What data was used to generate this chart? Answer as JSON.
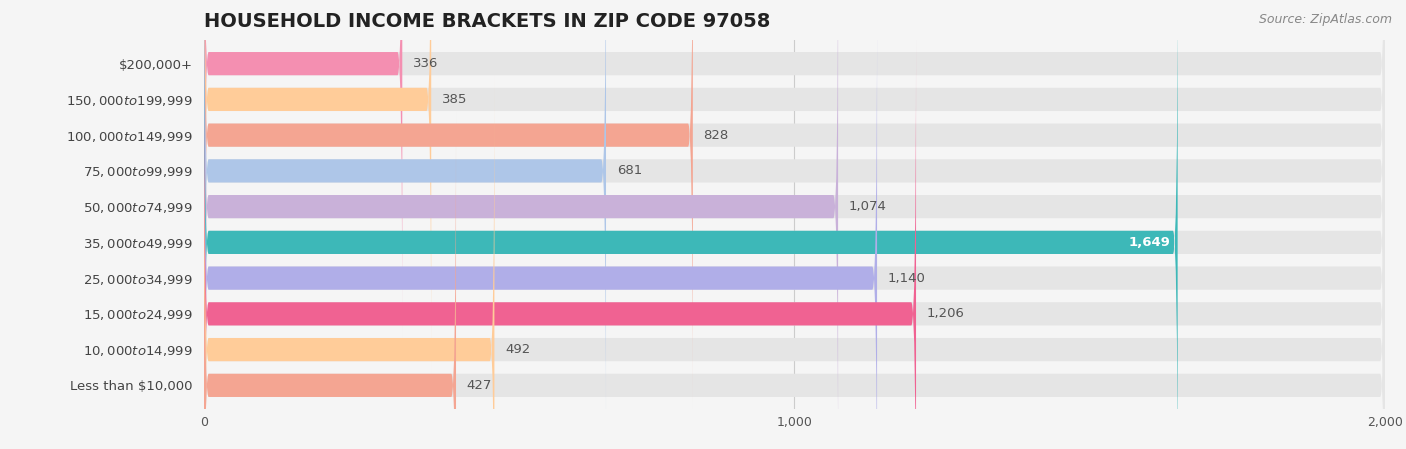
{
  "title": "HOUSEHOLD INCOME BRACKETS IN ZIP CODE 97058",
  "source": "Source: ZipAtlas.com",
  "categories": [
    "Less than $10,000",
    "$10,000 to $14,999",
    "$15,000 to $24,999",
    "$25,000 to $34,999",
    "$35,000 to $49,999",
    "$50,000 to $74,999",
    "$75,000 to $99,999",
    "$100,000 to $149,999",
    "$150,000 to $199,999",
    "$200,000+"
  ],
  "values": [
    336,
    385,
    828,
    681,
    1074,
    1649,
    1140,
    1206,
    492,
    427
  ],
  "bar_colors": [
    "#f48fb1",
    "#ffcc99",
    "#f4a592",
    "#aec6e8",
    "#c9b1d9",
    "#3db8b8",
    "#b0aee8",
    "#f06292",
    "#ffcc99",
    "#f4a592"
  ],
  "background_color": "#f5f5f5",
  "bar_background": "#e5e5e5",
  "xlim_max": 2000,
  "xticks": [
    0,
    1000,
    2000
  ],
  "title_fontsize": 14,
  "label_fontsize": 9.5,
  "source_fontsize": 9,
  "bar_height": 0.65,
  "bar_rounding": 8
}
